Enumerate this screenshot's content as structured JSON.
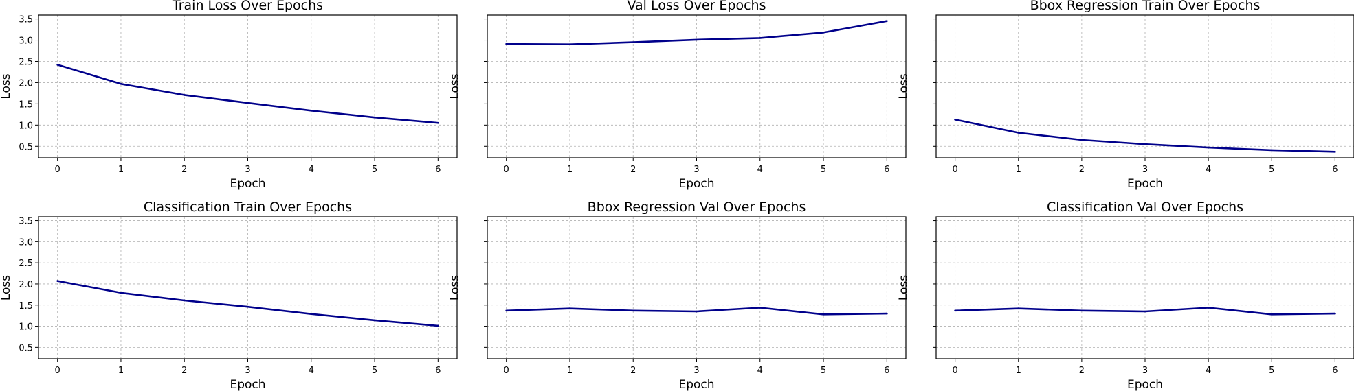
{
  "colors": {
    "line": "#00008b",
    "grid": "#b0b0b0"
  },
  "chart_data": [
    {
      "type": "line",
      "title": "Train Loss Over Epochs",
      "xlabel": "Epoch",
      "ylabel": "Loss",
      "x": [
        0,
        1,
        2,
        3,
        4,
        5,
        6
      ],
      "xticks": [
        "0",
        "1",
        "2",
        "3",
        "4",
        "5",
        "6"
      ],
      "yticks": [
        "0.5",
        "1.0",
        "1.5",
        "2.0",
        "2.5",
        "3.0",
        "3.5"
      ],
      "show_yticklabels": true,
      "xlim": [
        -0.3,
        6.3
      ],
      "ylim": [
        0.23,
        3.59
      ],
      "grid": true,
      "series": [
        {
          "values": [
            2.42,
            1.97,
            1.71,
            1.52,
            1.34,
            1.18,
            1.05
          ]
        }
      ]
    },
    {
      "type": "line",
      "title": "Val Loss Over Epochs",
      "xlabel": "Epoch",
      "ylabel": "Loss",
      "x": [
        0,
        1,
        2,
        3,
        4,
        5,
        6
      ],
      "xticks": [
        "0",
        "1",
        "2",
        "3",
        "4",
        "5",
        "6"
      ],
      "yticks": [
        "0.5",
        "1.0",
        "1.5",
        "2.0",
        "2.5",
        "3.0",
        "3.5"
      ],
      "show_yticklabels": false,
      "xlim": [
        -0.3,
        6.3
      ],
      "ylim": [
        0.23,
        3.59
      ],
      "grid": true,
      "series": [
        {
          "values": [
            2.91,
            2.9,
            2.95,
            3.01,
            3.05,
            3.18,
            3.45
          ]
        }
      ]
    },
    {
      "type": "line",
      "title": "Bbox Regression Train Over Epochs",
      "xlabel": "Epoch",
      "ylabel": "Loss",
      "x": [
        0,
        1,
        2,
        3,
        4,
        5,
        6
      ],
      "xticks": [
        "0",
        "1",
        "2",
        "3",
        "4",
        "5",
        "6"
      ],
      "yticks": [
        "0.5",
        "1.0",
        "1.5",
        "2.0",
        "2.5",
        "3.0",
        "3.5"
      ],
      "show_yticklabels": false,
      "xlim": [
        -0.3,
        6.3
      ],
      "ylim": [
        0.23,
        3.59
      ],
      "grid": true,
      "series": [
        {
          "values": [
            1.13,
            0.82,
            0.65,
            0.55,
            0.47,
            0.41,
            0.37
          ]
        }
      ]
    },
    {
      "type": "line",
      "title": "Classification Train Over Epochs",
      "xlabel": "Epoch",
      "ylabel": "Loss",
      "x": [
        0,
        1,
        2,
        3,
        4,
        5,
        6
      ],
      "xticks": [
        "0",
        "1",
        "2",
        "3",
        "4",
        "5",
        "6"
      ],
      "yticks": [
        "0.5",
        "1.0",
        "1.5",
        "2.0",
        "2.5",
        "3.0",
        "3.5"
      ],
      "show_yticklabels": true,
      "xlim": [
        -0.3,
        6.3
      ],
      "ylim": [
        0.23,
        3.59
      ],
      "grid": true,
      "series": [
        {
          "values": [
            2.07,
            1.79,
            1.61,
            1.46,
            1.29,
            1.14,
            1.01
          ]
        }
      ]
    },
    {
      "type": "line",
      "title": "Bbox Regression Val Over Epochs",
      "xlabel": "Epoch",
      "ylabel": "Loss",
      "x": [
        0,
        1,
        2,
        3,
        4,
        5,
        6
      ],
      "xticks": [
        "0",
        "1",
        "2",
        "3",
        "4",
        "5",
        "6"
      ],
      "yticks": [
        "0.5",
        "1.0",
        "1.5",
        "2.0",
        "2.5",
        "3.0",
        "3.5"
      ],
      "show_yticklabels": false,
      "xlim": [
        -0.3,
        6.3
      ],
      "ylim": [
        0.23,
        3.59
      ],
      "grid": true,
      "series": [
        {
          "values": [
            1.37,
            1.42,
            1.37,
            1.35,
            1.44,
            1.28,
            1.3
          ]
        }
      ]
    },
    {
      "type": "line",
      "title": "Classification Val Over Epochs",
      "xlabel": "Epoch",
      "ylabel": "Loss",
      "x": [
        0,
        1,
        2,
        3,
        4,
        5,
        6
      ],
      "xticks": [
        "0",
        "1",
        "2",
        "3",
        "4",
        "5",
        "6"
      ],
      "yticks": [
        "0.5",
        "1.0",
        "1.5",
        "2.0",
        "2.5",
        "3.0",
        "3.5"
      ],
      "show_yticklabels": false,
      "xlim": [
        -0.3,
        6.3
      ],
      "ylim": [
        0.23,
        3.59
      ],
      "grid": true,
      "series": [
        {
          "values": [
            1.37,
            1.42,
            1.37,
            1.35,
            1.44,
            1.28,
            1.3
          ]
        }
      ]
    }
  ]
}
